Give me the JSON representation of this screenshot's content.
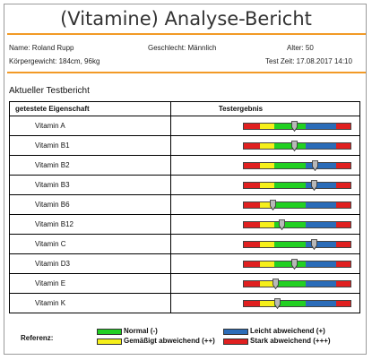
{
  "report": {
    "title": "(Vitamine) Analyse-Bericht",
    "name": "Name: Roland Rupp",
    "gender": "Geschlecht: Männlich",
    "age": "Alter: 50",
    "body": "Körpergewicht: 184cm, 96kg",
    "test_time": "Test Zeit: 17.08.2017 14:10",
    "section": "Aktueller Testbericht",
    "col_property": "getestete Eigenschaft",
    "col_result": "Testergebnis"
  },
  "colors": {
    "accent": "#f29a26",
    "red": "#e02020",
    "yellow": "#f5ef1a",
    "green": "#22d022",
    "blue": "#2b6cb8"
  },
  "scale_segments": [
    "red",
    "yellow",
    "green",
    "blue",
    "red"
  ],
  "rows": [
    {
      "label": "Vitamin A",
      "value": 0.48
    },
    {
      "label": "Vitamin B1",
      "value": 0.48
    },
    {
      "label": "Vitamin B2",
      "value": 0.67
    },
    {
      "label": "Vitamin B3",
      "value": 0.66
    },
    {
      "label": "Vitamin B6",
      "value": 0.28
    },
    {
      "label": "Vitamin B12",
      "value": 0.36
    },
    {
      "label": "Vitamin C",
      "value": 0.66
    },
    {
      "label": "Vitamin D3",
      "value": 0.48
    },
    {
      "label": "Vitamin E",
      "value": 0.3
    },
    {
      "label": "Vitamin K",
      "value": 0.32
    }
  ],
  "legend": {
    "label": "Referenz:",
    "items": [
      {
        "text": "Normal (-)",
        "color": "green"
      },
      {
        "text": "Leicht abweichend (+)",
        "color": "blue"
      },
      {
        "text": "Gemäßigt abweichend (++)",
        "color": "yellow"
      },
      {
        "text": "Stark abweichend (+++)",
        "color": "red"
      }
    ]
  }
}
